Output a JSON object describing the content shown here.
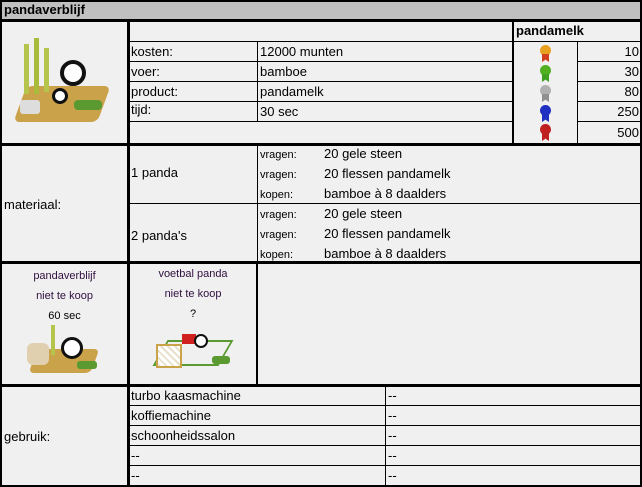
{
  "title": "pandaverblijf",
  "info": {
    "rows": [
      {
        "label": "kosten:",
        "value": "12000 munten"
      },
      {
        "label": "voer:",
        "value": "bamboe"
      },
      {
        "label": "product:",
        "value": "pandamelk"
      },
      {
        "label": "tijd:",
        "value": "30 sec"
      }
    ]
  },
  "product": {
    "header": "pandamelk",
    "levels": [
      {
        "medal": "gold-medal-icon",
        "color": "#e8a020",
        "value": "10"
      },
      {
        "medal": "green-medal-icon",
        "color": "#40a020",
        "value": "30"
      },
      {
        "medal": "silver-medal-icon",
        "color": "#a0a0a0",
        "value": "80"
      },
      {
        "medal": "blue-medal-icon",
        "color": "#2030c0",
        "value": "250"
      },
      {
        "medal": "red-medal-icon",
        "color": "#c02020",
        "value": "500"
      }
    ]
  },
  "materiaal": {
    "label": "materiaal:",
    "groups": [
      {
        "name": "1 panda",
        "lines": [
          {
            "k": "vragen:",
            "v": "20 gele steen"
          },
          {
            "k": "vragen:",
            "v": "20 flessen pandamelk"
          },
          {
            "k": "kopen:",
            "v": "bamboe à 8 daalders"
          }
        ]
      },
      {
        "name": "2 panda's",
        "lines": [
          {
            "k": "vragen:",
            "v": "20 gele steen"
          },
          {
            "k": "vragen:",
            "v": "20 flessen pandamelk"
          },
          {
            "k": "kopen:",
            "v": "bamboe à 8 daalders"
          }
        ]
      }
    ]
  },
  "related": [
    {
      "name": "pandaverblijf",
      "status": "niet te koop",
      "time": "60 sec"
    },
    {
      "name": "voetbal panda",
      "status": "niet te koop",
      "time": "?"
    }
  ],
  "gebruik": {
    "label": "gebruik:",
    "rows": [
      {
        "a": "turbo kaasmachine",
        "b": "--"
      },
      {
        "a": "koffiemachine",
        "b": "--"
      },
      {
        "a": "schoonheidssalon",
        "b": "--"
      },
      {
        "a": "--",
        "b": "--"
      },
      {
        "a": "--",
        "b": "--"
      }
    ]
  }
}
